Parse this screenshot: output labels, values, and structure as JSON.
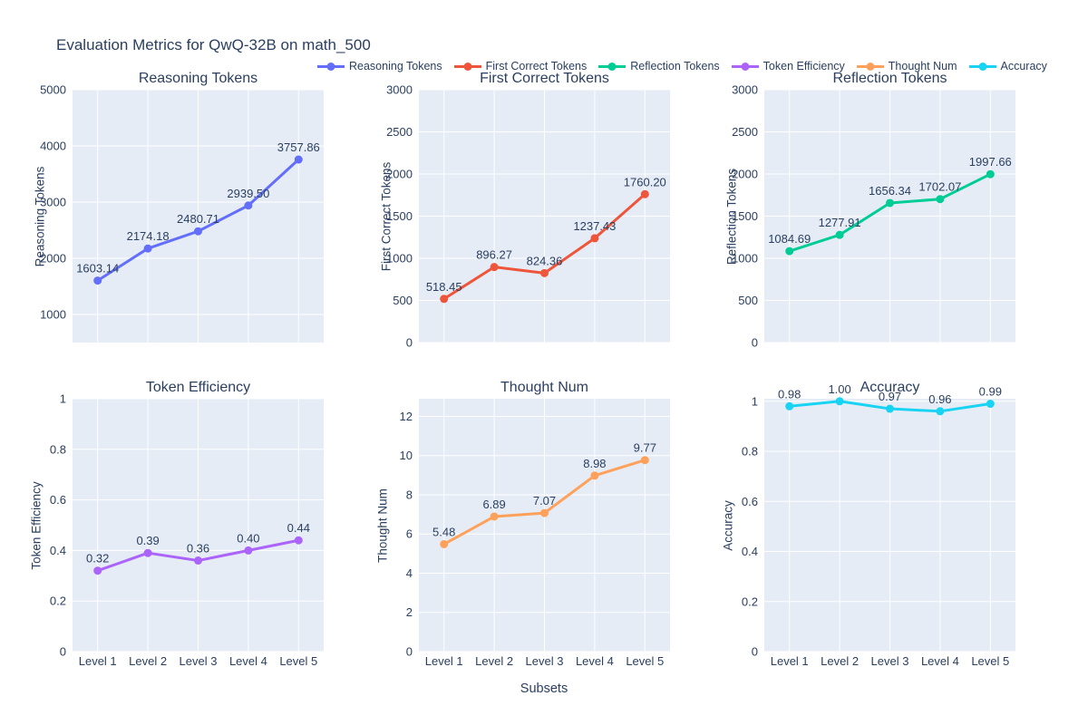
{
  "title": "Evaluation Metrics for QwQ-32B on math_500",
  "xlabel": "Subsets",
  "theme": {
    "plot_background": "#E5ECF6",
    "grid_color": "#FFFFFF",
    "text_color": "#2a3f5f"
  },
  "legend": {
    "items": [
      {
        "label": "Reasoning Tokens",
        "color": "#636EFA"
      },
      {
        "label": "First Correct Tokens",
        "color": "#EF553B"
      },
      {
        "label": "Reflection Tokens",
        "color": "#00CC96"
      },
      {
        "label": "Token Efficiency",
        "color": "#AB63FA"
      },
      {
        "label": "Thought Num",
        "color": "#FFA15A"
      },
      {
        "label": "Accuracy",
        "color": "#19D3F3"
      }
    ]
  },
  "chart_data": [
    {
      "type": "line",
      "title": "Reasoning Tokens",
      "ylabel": "Reasoning Tokens",
      "color": "#636EFA",
      "categories": [
        "Level 1",
        "Level 2",
        "Level 3",
        "Level 4",
        "Level 5"
      ],
      "values": [
        1603.14,
        2174.18,
        2480.71,
        2939.5,
        3757.86
      ],
      "point_labels": [
        "1603.14",
        "2174.18",
        "2480.71",
        "2939.50",
        "3757.86"
      ],
      "ylim": [
        500,
        5000
      ],
      "yticks": [
        1000,
        2000,
        3000,
        4000,
        5000
      ],
      "ytick_labels": [
        "1000",
        "2000",
        "3000",
        "4000",
        "5000"
      ],
      "show_x_tick_labels": false,
      "grid": true
    },
    {
      "type": "line",
      "title": "First Correct Tokens",
      "ylabel": "First Correct Tokens",
      "color": "#EF553B",
      "categories": [
        "Level 1",
        "Level 2",
        "Level 3",
        "Level 4",
        "Level 5"
      ],
      "values": [
        518.45,
        896.27,
        824.36,
        1237.43,
        1760.2
      ],
      "point_labels": [
        "518.45",
        "896.27",
        "824.36",
        "1237.43",
        "1760.20"
      ],
      "ylim": [
        0,
        3000
      ],
      "yticks": [
        0,
        500,
        1000,
        1500,
        2000,
        2500,
        3000
      ],
      "ytick_labels": [
        "0",
        "500",
        "1000",
        "1500",
        "2000",
        "2500",
        "3000"
      ],
      "show_x_tick_labels": false,
      "grid": true
    },
    {
      "type": "line",
      "title": "Reflection Tokens",
      "ylabel": "Reflection Tokens",
      "color": "#00CC96",
      "categories": [
        "Level 1",
        "Level 2",
        "Level 3",
        "Level 4",
        "Level 5"
      ],
      "values": [
        1084.69,
        1277.91,
        1656.34,
        1702.07,
        1997.66
      ],
      "point_labels": [
        "1084.69",
        "1277.91",
        "1656.34",
        "1702.07",
        "1997.66"
      ],
      "ylim": [
        0,
        3000
      ],
      "yticks": [
        0,
        500,
        1000,
        1500,
        2000,
        2500,
        3000
      ],
      "ytick_labels": [
        "0",
        "500",
        "1000",
        "1500",
        "2000",
        "2500",
        "3000"
      ],
      "show_x_tick_labels": false,
      "grid": true
    },
    {
      "type": "line",
      "title": "Token Efficiency",
      "ylabel": "Token Efficiency",
      "color": "#AB63FA",
      "categories": [
        "Level 1",
        "Level 2",
        "Level 3",
        "Level 4",
        "Level 5"
      ],
      "values": [
        0.32,
        0.39,
        0.36,
        0.4,
        0.44
      ],
      "point_labels": [
        "0.32",
        "0.39",
        "0.36",
        "0.40",
        "0.44"
      ],
      "ylim": [
        0,
        1
      ],
      "yticks": [
        0,
        0.2,
        0.4,
        0.6,
        0.8,
        1
      ],
      "ytick_labels": [
        "0",
        "0.2",
        "0.4",
        "0.6",
        "0.8",
        "1"
      ],
      "show_x_tick_labels": true,
      "grid": true
    },
    {
      "type": "line",
      "title": "Thought Num",
      "ylabel": "Thought Num",
      "color": "#FFA15A",
      "categories": [
        "Level 1",
        "Level 2",
        "Level 3",
        "Level 4",
        "Level 5"
      ],
      "values": [
        5.48,
        6.89,
        7.07,
        8.98,
        9.77
      ],
      "point_labels": [
        "5.48",
        "6.89",
        "7.07",
        "8.98",
        "9.77"
      ],
      "ylim": [
        0,
        12.9
      ],
      "yticks": [
        0,
        2,
        4,
        6,
        8,
        10,
        12
      ],
      "ytick_labels": [
        "0",
        "2",
        "4",
        "6",
        "8",
        "10",
        "12"
      ],
      "show_x_tick_labels": true,
      "grid": true
    },
    {
      "type": "line",
      "title": "Accuracy",
      "ylabel": "Accuracy",
      "color": "#19D3F3",
      "categories": [
        "Level 1",
        "Level 2",
        "Level 3",
        "Level 4",
        "Level 5"
      ],
      "values": [
        0.98,
        1.0,
        0.97,
        0.96,
        0.99
      ],
      "point_labels": [
        "0.98",
        "1.00",
        "0.97",
        "0.96",
        "0.99"
      ],
      "ylim": [
        0,
        1.01
      ],
      "yticks": [
        0,
        0.2,
        0.4,
        0.6,
        0.8,
        1
      ],
      "ytick_labels": [
        "0",
        "0.2",
        "0.4",
        "0.6",
        "0.8",
        "1"
      ],
      "show_x_tick_labels": true,
      "grid": true
    }
  ]
}
